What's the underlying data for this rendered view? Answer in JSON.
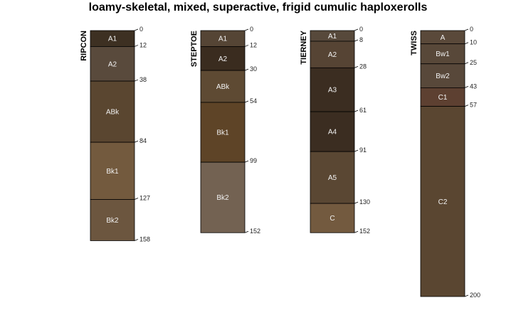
{
  "chart_data": {
    "type": "soil-profile-sketch",
    "title": "loamy-skeletal, mixed, superactive, frigid cumulic haploxerolls",
    "depth_units": "cm",
    "ylim": [
      0,
      200
    ],
    "profiles": [
      {
        "name": "RIPCON",
        "horizons": [
          {
            "name": "A1",
            "top": 0,
            "bottom": 12,
            "color": "#3d3022"
          },
          {
            "name": "A2",
            "top": 12,
            "bottom": 38,
            "color": "#594a3c"
          },
          {
            "name": "ABk",
            "top": 38,
            "bottom": 84,
            "color": "#5a4630"
          },
          {
            "name": "Bk1",
            "top": 84,
            "bottom": 127,
            "color": "#735a3e"
          },
          {
            "name": "Bk2",
            "top": 127,
            "bottom": 158,
            "color": "#6c563f"
          }
        ]
      },
      {
        "name": "STEPTOE",
        "horizons": [
          {
            "name": "A1",
            "top": 0,
            "bottom": 12,
            "color": "#554535"
          },
          {
            "name": "A2",
            "top": 12,
            "bottom": 30,
            "color": "#3a2c1f"
          },
          {
            "name": "ABk",
            "top": 30,
            "bottom": 54,
            "color": "#5e4a33"
          },
          {
            "name": "Bk1",
            "top": 54,
            "bottom": 99,
            "color": "#5e4427"
          },
          {
            "name": "Bk2",
            "top": 99,
            "bottom": 152,
            "color": "#736252"
          }
        ]
      },
      {
        "name": "TIERNEY",
        "horizons": [
          {
            "name": "A1",
            "top": 0,
            "bottom": 8,
            "color": "#57493b"
          },
          {
            "name": "A2",
            "top": 8,
            "bottom": 28,
            "color": "#564434"
          },
          {
            "name": "A3",
            "top": 28,
            "bottom": 61,
            "color": "#3b2d21"
          },
          {
            "name": "A4",
            "top": 61,
            "bottom": 91,
            "color": "#3b2d21"
          },
          {
            "name": "A5",
            "top": 91,
            "bottom": 130,
            "color": "#5a4733"
          },
          {
            "name": "C",
            "top": 130,
            "bottom": 152,
            "color": "#735a3f"
          }
        ]
      },
      {
        "name": "TWISS",
        "horizons": [
          {
            "name": "A",
            "top": 0,
            "bottom": 10,
            "color": "#5a493a"
          },
          {
            "name": "Bw1",
            "top": 10,
            "bottom": 25,
            "color": "#584839"
          },
          {
            "name": "Bw2",
            "top": 25,
            "bottom": 43,
            "color": "#58483a"
          },
          {
            "name": "C1",
            "top": 43,
            "bottom": 57,
            "color": "#5d4031"
          },
          {
            "name": "C2",
            "top": 57,
            "bottom": 200,
            "color": "#5a4631"
          }
        ]
      }
    ]
  }
}
